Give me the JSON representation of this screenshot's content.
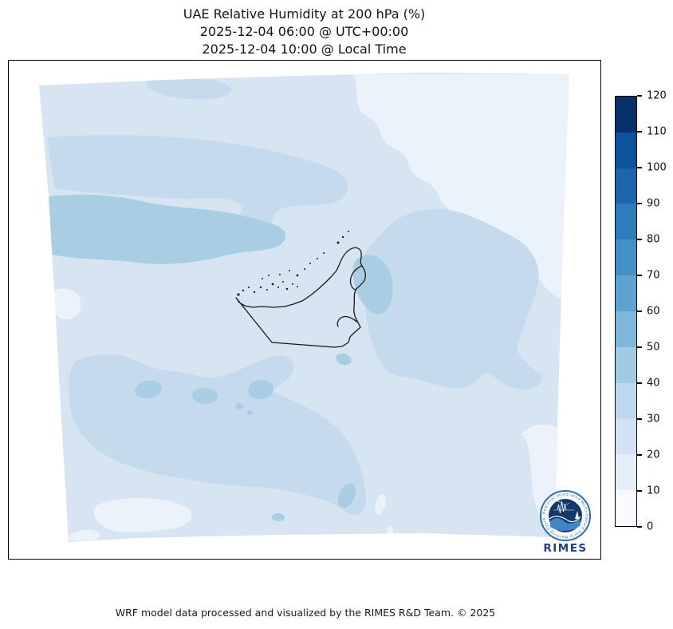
{
  "title": {
    "line1": "UAE Relative Humidity at 200 hPa (%)",
    "line2": "2025-12-04 06:00 @ UTC+00:00",
    "line3": "2025-12-04 10:00 @ Local Time"
  },
  "footer": {
    "credit": "WRF model data processed and visualized by the RIMES R&D Team. © 2025"
  },
  "logo": {
    "name": "RIMES",
    "ring_text": "Regional Integrated Multi-Hazard Early Warning System",
    "ring_color": "#2b6cb5",
    "disc_color": "#10386b",
    "wave_color": "#3f86c5",
    "wordmark_color": "#1e3f8e"
  },
  "colorbar": {
    "min": 0,
    "max": 120,
    "interval": 10,
    "ticks": [
      0,
      10,
      20,
      30,
      40,
      50,
      60,
      70,
      80,
      90,
      100,
      110,
      120
    ],
    "colors_bottom_to_top": [
      "#f7fbff",
      "#e4eef9",
      "#d1e2f3",
      "#bdd7ec",
      "#a0cbe2",
      "#7db8da",
      "#5ca4cf",
      "#4292c6",
      "#2d7dbb",
      "#1966ad",
      "#0a549e",
      "#08306b"
    ]
  },
  "map": {
    "palette": {
      "band_10_20": "#ebf2fa",
      "band_20_30": "#d7e5f3",
      "band_30_40": "#c5dbed",
      "band_40_50": "#a9cee3"
    },
    "boundary_color": "#1a1a1a",
    "background": "#ffffff"
  },
  "chart_data": {
    "type": "heatmap",
    "title": "UAE Relative Humidity at 200 hPa (%)",
    "valid_time_utc": "2025-12-04 06:00 @ UTC+00:00",
    "valid_time_local": "2025-12-04 10:00 @ Local Time",
    "variable": "Relative Humidity",
    "level_hPa": 200,
    "units": "%",
    "colormap": "Blues",
    "colorbar_range": [
      0,
      120
    ],
    "colorbar_interval": 10,
    "value_range_displayed_on_map": [
      10,
      50
    ],
    "legend_position": "right vertical colorbar",
    "grid": false,
    "axis_labels": "none (geographic map, no lat/lon ticks shown)",
    "overlay": "UAE coastline and administrative boundary with offshore islands",
    "regions": [
      {
        "area": "northeast corner of domain",
        "rh_percent": "10-20"
      },
      {
        "area": "general background of domain",
        "rh_percent": "20-30"
      },
      {
        "area": "northwest band across upper-left",
        "rh_percent": "30-40"
      },
      {
        "area": "west band hugging left edge (upper-middle)",
        "rh_percent": "40-50"
      },
      {
        "area": "large mass east/southeast of UAE mountains",
        "rh_percent": "30-40"
      },
      {
        "area": "Musandam mountain patch",
        "rh_percent": "40-50"
      },
      {
        "area": "large south-central blob",
        "rh_percent": "30-40"
      },
      {
        "area": "small spots inside south-central blob",
        "rh_percent": "40-50"
      },
      {
        "area": "patches near southwest corner and southeast edge",
        "rh_percent": "10-20"
      }
    ]
  }
}
